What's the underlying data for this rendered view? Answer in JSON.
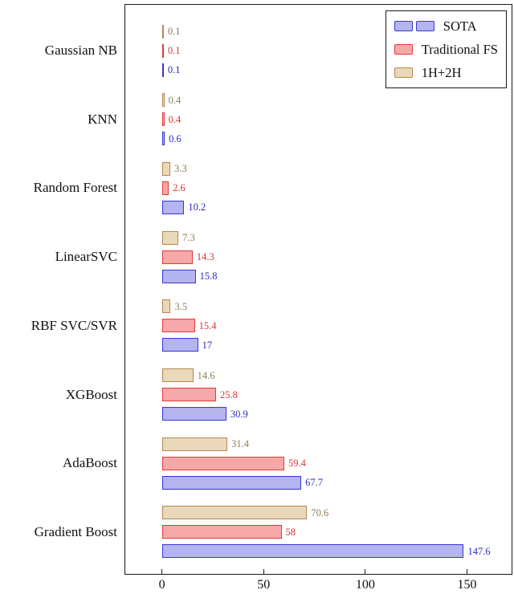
{
  "chart_data": {
    "type": "bar",
    "orientation": "horizontal",
    "title": "",
    "xlabel": "",
    "ylabel": "",
    "grid": false,
    "categories": [
      "Gaussian NB",
      "KNN",
      "Random Forest",
      "LinearSVC",
      "RBF SVC/SVR",
      "XGBoost",
      "AdaBoost",
      "Gradient Boost"
    ],
    "series": [
      {
        "name": "1H+2H",
        "values": [
          0.1,
          0.4,
          3.3,
          7.3,
          3.5,
          14.6,
          31.4,
          70.6
        ],
        "labels": [
          "0.1",
          "0.4",
          "3.3",
          "7.3",
          "3.5",
          "14.6",
          "31.4",
          "70.6"
        ],
        "border_color": "#b5884f",
        "fill_color": "#e9d8b9",
        "label_color": "#8e7a58"
      },
      {
        "name": "Traditional FS",
        "values": [
          0.1,
          0.4,
          2.6,
          14.3,
          15.4,
          25.8,
          59.4,
          58
        ],
        "labels": [
          "0.1",
          "0.4",
          "2.6",
          "14.3",
          "15.4",
          "25.8",
          "59.4",
          "58"
        ],
        "border_color": "#e4393c",
        "fill_color": "#f7a8a8",
        "label_color": "#dd3333"
      },
      {
        "name": "SOTA",
        "values": [
          0.1,
          0.6,
          10.2,
          15.8,
          17,
          30.9,
          67.7,
          147.6
        ],
        "labels": [
          "0.1",
          "0.6",
          "10.2",
          "15.8",
          "17",
          "30.9",
          "67.7",
          "147.6"
        ],
        "border_color": "#3737d8",
        "fill_color": "#b4b4ee",
        "label_color": "#2b2bc4"
      }
    ],
    "axis": {
      "ticks": [
        0,
        50,
        100,
        150
      ],
      "tick_labels": [
        "0",
        "50",
        "100",
        "150"
      ],
      "xmin": -18,
      "xmax": 172.7
    },
    "legend": {
      "position": "top-right",
      "items": [
        {
          "label": "SOTA",
          "series": "SOTA",
          "swatches": 2
        },
        {
          "label": "Traditional FS",
          "series": "Traditional FS",
          "swatches": 1
        },
        {
          "label": "1H+2H",
          "series": "1H+2H",
          "swatches": 1
        }
      ]
    }
  }
}
